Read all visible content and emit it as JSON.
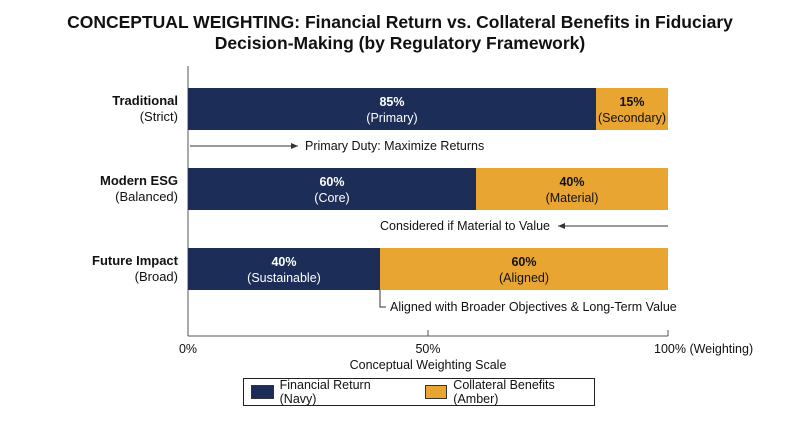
{
  "title_line1": "CONCEPTUAL WEIGHTING: Financial Return vs. Collateral Benefits in Fiduciary",
  "title_line2": "Decision-Making (by Regulatory Framework)",
  "colors": {
    "financial": "#1c2d57",
    "collateral": "#e8a531",
    "axis": "#555555",
    "text": "#111111"
  },
  "chart_data": {
    "type": "bar",
    "orientation": "horizontal",
    "stacked": true,
    "categories": [
      {
        "name": "Traditional",
        "sub": "(Strict)"
      },
      {
        "name": "Modern ESG",
        "sub": "(Balanced)"
      },
      {
        "name": "Future Impact",
        "sub": "(Broad)"
      }
    ],
    "series": [
      {
        "name": "Financial Return (Navy)",
        "values": [
          85,
          60,
          40
        ],
        "labels": [
          [
            "85%",
            "(Primary)"
          ],
          [
            "60%",
            "(Core)"
          ],
          [
            "40%",
            "(Sustainable)"
          ]
        ]
      },
      {
        "name": "Collateral Benefits (Amber)",
        "values": [
          15,
          40,
          60
        ],
        "labels": [
          [
            "15%",
            "(Secondary)"
          ],
          [
            "40%",
            "(Material)"
          ],
          [
            "60%",
            "(Aligned)"
          ]
        ]
      }
    ],
    "annotations": [
      {
        "text": "Primary Duty: Maximize Returns",
        "arrow": "right"
      },
      {
        "text": "Considered if Material to Value",
        "arrow": "left"
      },
      {
        "text": "Aligned with Broader Objectives & Long-Term Value",
        "arrow": "bracket"
      }
    ],
    "xlim": [
      0,
      100
    ],
    "ticks": [
      {
        "value": 0,
        "label": "0%"
      },
      {
        "value": 50,
        "label": "50%"
      },
      {
        "value": 100,
        "label": "100% (Weighting)"
      }
    ],
    "xlabel": "Conceptual Weighting Scale",
    "grid": false,
    "legend_position": "bottom"
  }
}
